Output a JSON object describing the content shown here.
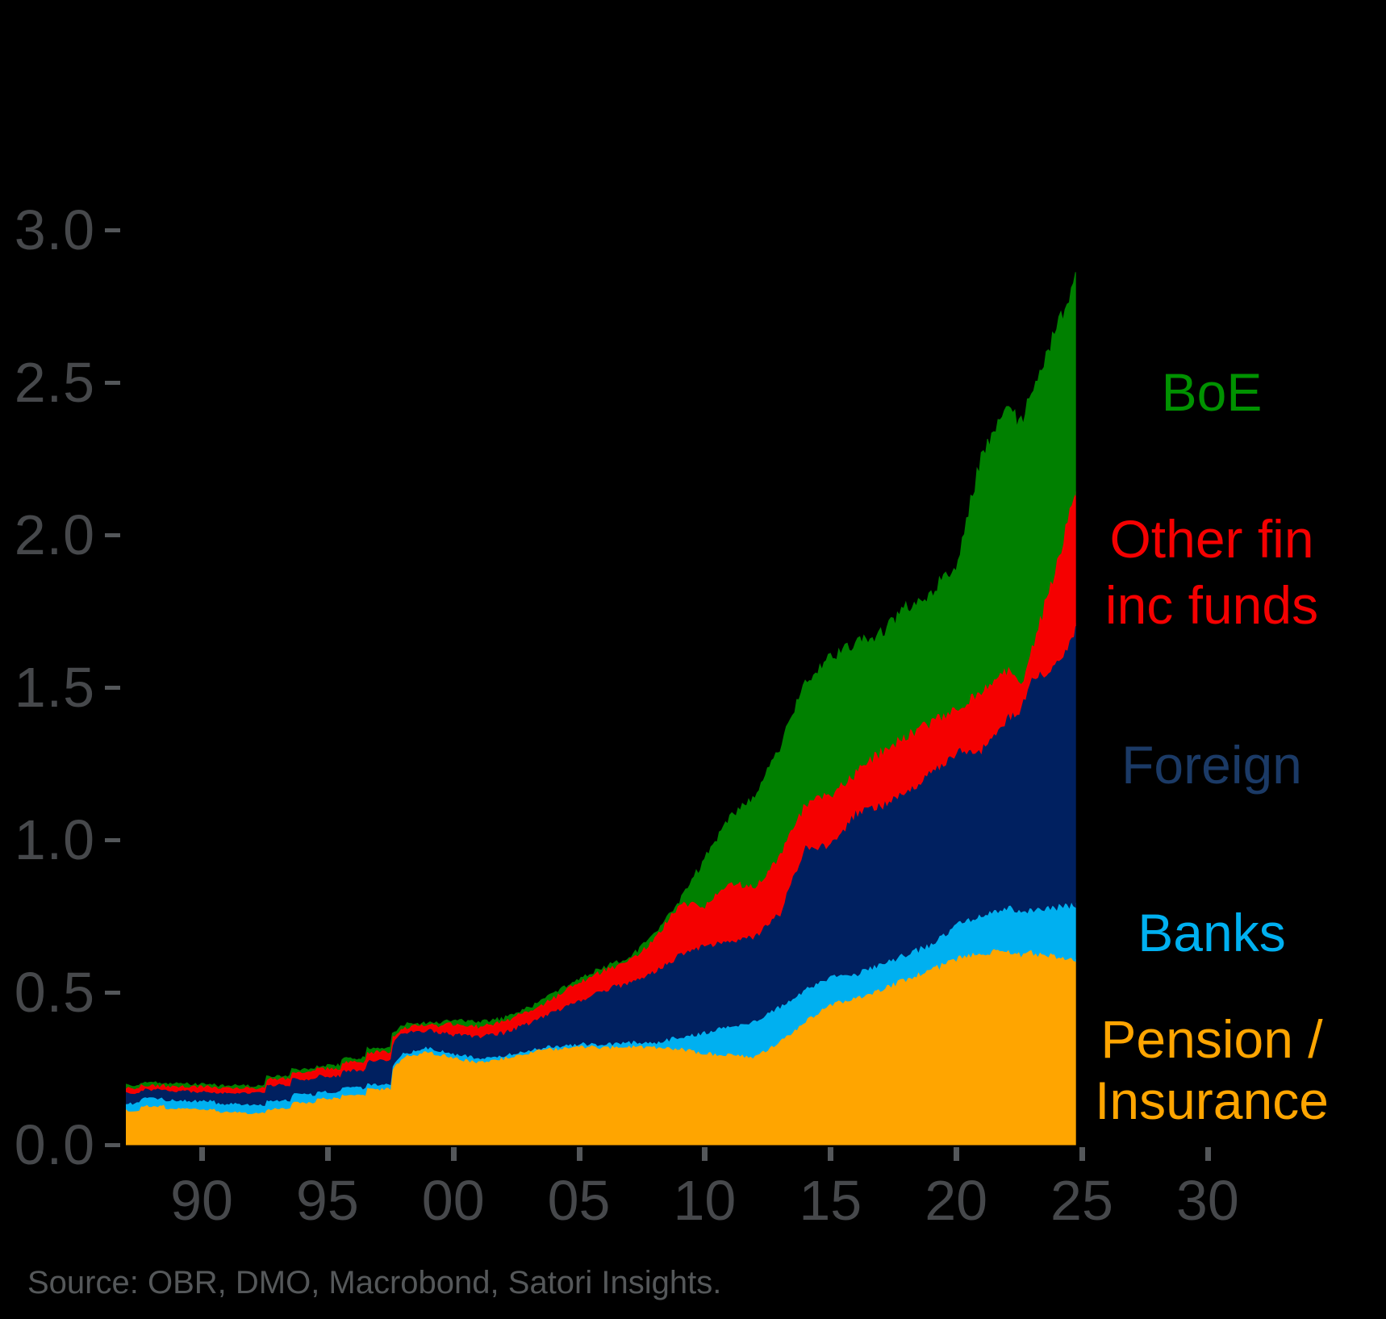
{
  "figure": {
    "background_color": "#000000",
    "axis_label_color": "#46484b",
    "tick_color": "#54575a"
  },
  "y_axis": {
    "labels": [
      "0.0",
      "0.5",
      "1.0",
      "1.5",
      "2.0",
      "2.5",
      "3.0"
    ],
    "values": [
      0,
      0.5,
      1.0,
      1.5,
      2.0,
      2.5,
      3.0
    ]
  },
  "x_axis": {
    "labels": [
      "90",
      "95",
      "00",
      "05",
      "10",
      "15",
      "20",
      "25",
      "30"
    ],
    "values": [
      1990,
      1995,
      2000,
      2005,
      2010,
      2015,
      2020,
      2025,
      2030
    ]
  },
  "legend": {
    "position": "right",
    "boe": {
      "label": "BoE",
      "color": "#009200"
    },
    "other_line1": "Other fin",
    "other_line2": "inc funds",
    "other_color": "#f50000",
    "foreign": {
      "label": "Foreign",
      "color": "#1b3a66"
    },
    "banks": {
      "label": "Banks",
      "color": "#00b0f0"
    },
    "pension_line1": "Pension /",
    "pension_line2": "Insurance",
    "pension_color": "#ffa500"
  },
  "source": {
    "text": "Source: OBR, DMO, Macrobond, Satori Insights."
  },
  "chart_data": {
    "type": "area",
    "stacked": true,
    "grid": false,
    "legend_position": "right",
    "title": "",
    "xlabel": "",
    "ylabel": "",
    "ylim": [
      0,
      3.0
    ],
    "xlim": [
      1987,
      2033.5
    ],
    "x": [
      1987,
      1988,
      1989,
      1990,
      1991,
      1992,
      1993,
      1994,
      1995,
      1996,
      1997,
      1998,
      1999,
      2000,
      2001,
      2002,
      2003,
      2004,
      2005,
      2006,
      2007,
      2008,
      2009,
      2010,
      2011,
      2012,
      2013,
      2014,
      2015,
      2016,
      2017,
      2018,
      2019,
      2020,
      2021,
      2022,
      2022.6,
      2023,
      2024,
      2024.75
    ],
    "series": [
      {
        "name": "Pension / Insurance",
        "color": "#ffa500",
        "values": [
          0.113,
          0.129,
          0.121,
          0.116,
          0.108,
          0.105,
          0.118,
          0.139,
          0.153,
          0.166,
          0.184,
          0.289,
          0.306,
          0.287,
          0.271,
          0.284,
          0.303,
          0.316,
          0.324,
          0.32,
          0.324,
          0.32,
          0.316,
          0.3,
          0.297,
          0.29,
          0.34,
          0.405,
          0.46,
          0.482,
          0.51,
          0.545,
          0.575,
          0.61,
          0.63,
          0.64,
          0.625,
          0.63,
          0.62,
          0.605
        ]
      },
      {
        "name": "Banks",
        "color": "#00b0f0",
        "values": [
          0.024,
          0.024,
          0.026,
          0.029,
          0.027,
          0.027,
          0.029,
          0.027,
          0.022,
          0.022,
          0.016,
          0.011,
          0.014,
          0.013,
          0.013,
          0.008,
          0.008,
          0.008,
          0.008,
          0.009,
          0.013,
          0.017,
          0.039,
          0.068,
          0.093,
          0.115,
          0.115,
          0.105,
          0.09,
          0.078,
          0.085,
          0.08,
          0.085,
          0.11,
          0.125,
          0.14,
          0.14,
          0.145,
          0.16,
          0.185
        ]
      },
      {
        "name": "Foreign",
        "color": "#002060",
        "values": [
          0.034,
          0.029,
          0.03,
          0.029,
          0.035,
          0.039,
          0.05,
          0.051,
          0.052,
          0.057,
          0.076,
          0.069,
          0.056,
          0.063,
          0.071,
          0.076,
          0.089,
          0.111,
          0.139,
          0.178,
          0.197,
          0.232,
          0.267,
          0.285,
          0.281,
          0.275,
          0.305,
          0.47,
          0.43,
          0.527,
          0.518,
          0.533,
          0.558,
          0.57,
          0.545,
          0.62,
          0.665,
          0.745,
          0.79,
          0.91
        ]
      },
      {
        "name": "Other fin inc funds",
        "color": "#f50000",
        "values": [
          0.016,
          0.014,
          0.016,
          0.018,
          0.018,
          0.016,
          0.021,
          0.023,
          0.025,
          0.029,
          0.029,
          0.018,
          0.016,
          0.034,
          0.035,
          0.037,
          0.04,
          0.049,
          0.063,
          0.067,
          0.071,
          0.107,
          0.17,
          0.129,
          0.192,
          0.165,
          0.19,
          0.14,
          0.17,
          0.133,
          0.18,
          0.184,
          0.172,
          0.144,
          0.19,
          0.16,
          0.09,
          0.11,
          0.34,
          0.45
        ]
      },
      {
        "name": "BoE",
        "color": "#008000",
        "values": [
          0.008,
          0.007,
          0.006,
          0.005,
          0.005,
          0.005,
          0.007,
          0.007,
          0.007,
          0.009,
          0.011,
          0.008,
          0.006,
          0.011,
          0.01,
          0.008,
          0.009,
          0.009,
          0.011,
          0.008,
          0.008,
          0.008,
          0.008,
          0.152,
          0.213,
          0.297,
          0.35,
          0.4,
          0.445,
          0.428,
          0.381,
          0.416,
          0.42,
          0.466,
          0.76,
          0.85,
          0.85,
          0.85,
          0.76,
          0.69
        ]
      }
    ]
  }
}
